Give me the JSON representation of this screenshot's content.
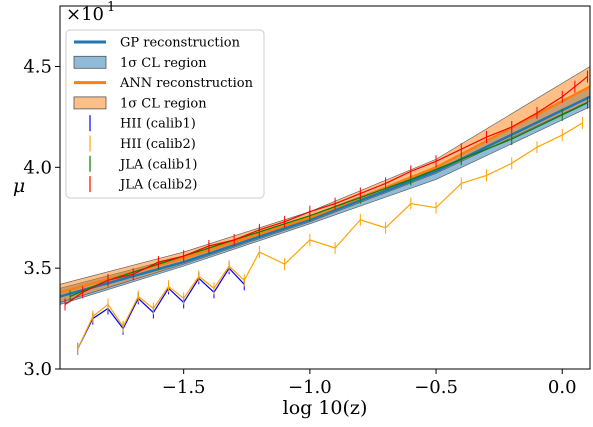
{
  "chart_data": {
    "type": "line",
    "xlabel": "log 10(z)",
    "ylabel": "μ",
    "offset_text": "×10",
    "offset_exponent": "1",
    "xlim": [
      -1.99,
      0.11
    ],
    "ylim": [
      3.0,
      4.8
    ],
    "xticks": [
      -1.5,
      -1.0,
      -0.5,
      0.0
    ],
    "xtick_labels": [
      "−1.5",
      "−1.0",
      "−0.5",
      "0.0"
    ],
    "yticks": [
      3.0,
      3.5,
      4.0,
      4.5
    ],
    "ytick_labels": [
      "3.0",
      "3.5",
      "4.0",
      "4.5"
    ],
    "grid": false,
    "legend_position": "upper-left",
    "legend": [
      {
        "label": "GP reconstruction",
        "kind": "line",
        "color": "#1f77b4"
      },
      {
        "label": "1σ CL region",
        "kind": "patch",
        "color": "#1f77b4"
      },
      {
        "label": "ANN reconstruction",
        "kind": "line",
        "color": "#ff7f0e"
      },
      {
        "label": "1σ CL region",
        "kind": "patch",
        "color": "#ff7f0e"
      },
      {
        "label": "HII (calib1)",
        "kind": "errorbar",
        "color": "#0000ff"
      },
      {
        "label": "HII (calib2)",
        "kind": "errorbar",
        "color": "#ffa500"
      },
      {
        "label": "JLA (calib1)",
        "kind": "errorbar",
        "color": "#008000"
      },
      {
        "label": "JLA (calib2)",
        "kind": "errorbar",
        "color": "#ff0000"
      }
    ],
    "gp": {
      "x": [
        -1.99,
        -1.5,
        -1.0,
        -0.5,
        0.11
      ],
      "mean": [
        3.36,
        3.53,
        3.74,
        3.98,
        4.35
      ],
      "lower": [
        3.32,
        3.51,
        3.72,
        3.94,
        4.3
      ],
      "upper": [
        3.4,
        3.56,
        3.76,
        4.0,
        4.4
      ]
    },
    "ann": {
      "x": [
        -1.99,
        -1.5,
        -1.0,
        -0.5,
        0.11
      ],
      "mean": [
        3.38,
        3.55,
        3.75,
        4.0,
        4.4
      ],
      "lower": [
        3.33,
        3.52,
        3.73,
        3.97,
        4.33
      ],
      "upper": [
        3.42,
        3.58,
        3.78,
        4.04,
        4.5
      ]
    },
    "series": [
      {
        "name": "HII (calib1)",
        "color": "#0000ff",
        "x": [
          -1.92,
          -1.86,
          -1.8,
          -1.74,
          -1.68,
          -1.62,
          -1.56,
          -1.5,
          -1.44,
          -1.38,
          -1.32,
          -1.26
        ],
        "y": [
          3.1,
          3.25,
          3.3,
          3.2,
          3.35,
          3.28,
          3.4,
          3.33,
          3.45,
          3.38,
          3.5,
          3.42
        ]
      },
      {
        "name": "HII (calib2)",
        "color": "#ffa500",
        "x": [
          -1.92,
          -1.86,
          -1.8,
          -1.74,
          -1.68,
          -1.62,
          -1.56,
          -1.5,
          -1.44,
          -1.38,
          -1.32,
          -1.26,
          -1.2,
          -1.1,
          -1.0,
          -0.9,
          -0.8,
          -0.7,
          -0.6,
          -0.5,
          -0.4,
          -0.3,
          -0.2,
          -0.1,
          0.0,
          0.08
        ],
        "y": [
          3.1,
          3.26,
          3.32,
          3.21,
          3.36,
          3.3,
          3.41,
          3.35,
          3.46,
          3.4,
          3.51,
          3.44,
          3.58,
          3.52,
          3.64,
          3.6,
          3.74,
          3.7,
          3.82,
          3.8,
          3.92,
          3.96,
          4.02,
          4.1,
          4.16,
          4.22
        ]
      },
      {
        "name": "JLA (calib1)",
        "color": "#008000",
        "x": [
          -1.95,
          -1.8,
          -1.6,
          -1.4,
          -1.2,
          -1.0,
          -0.8,
          -0.6,
          -0.4,
          -0.2,
          0.0,
          0.1
        ],
        "y": [
          3.36,
          3.44,
          3.52,
          3.6,
          3.68,
          3.76,
          3.85,
          3.94,
          4.04,
          4.14,
          4.26,
          4.32
        ]
      },
      {
        "name": "JLA (calib2)",
        "color": "#ff0000",
        "x": [
          -1.97,
          -1.9,
          -1.8,
          -1.7,
          -1.6,
          -1.5,
          -1.4,
          -1.3,
          -1.2,
          -1.1,
          -1.0,
          -0.9,
          -0.8,
          -0.7,
          -0.6,
          -0.5,
          -0.4,
          -0.3,
          -0.2,
          -0.1,
          0.0,
          0.05,
          0.1
        ],
        "y": [
          3.32,
          3.38,
          3.44,
          3.47,
          3.53,
          3.56,
          3.61,
          3.64,
          3.69,
          3.73,
          3.78,
          3.82,
          3.87,
          3.92,
          3.98,
          4.03,
          4.09,
          4.15,
          4.2,
          4.27,
          4.35,
          4.4,
          4.45
        ]
      }
    ]
  }
}
